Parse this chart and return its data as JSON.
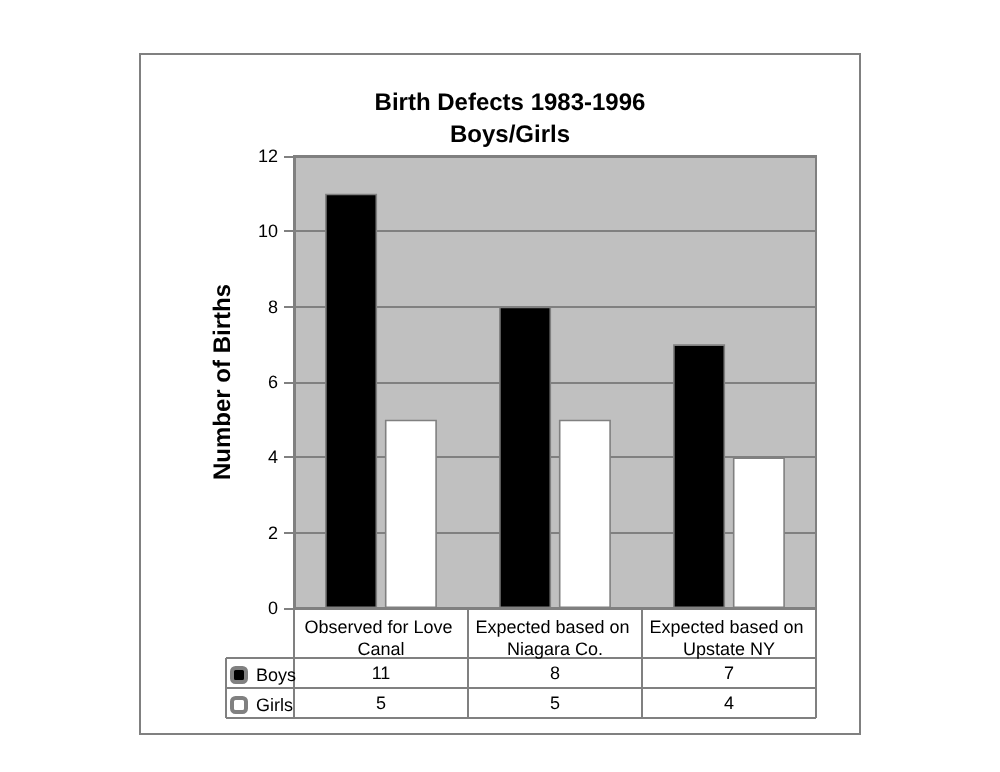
{
  "chart_data": {
    "type": "bar",
    "title": "Birth Defects 1983-1996",
    "subtitle": "Boys/Girls",
    "ylabel": "Number of Births",
    "categories": [
      "Observed for Love Canal",
      "Expected based on Niagara Co.",
      "Expected based on Upstate NY"
    ],
    "series": [
      {
        "name": "Boys",
        "color": "#000000",
        "values": [
          11,
          8,
          7
        ]
      },
      {
        "name": "Girls",
        "color": "#ffffff",
        "values": [
          5,
          5,
          4
        ]
      }
    ],
    "ylim": [
      0,
      12
    ],
    "yticks": [
      0,
      2,
      4,
      6,
      8,
      10,
      12
    ],
    "grid": "y",
    "legend": "bottom left",
    "data_labels": true
  }
}
